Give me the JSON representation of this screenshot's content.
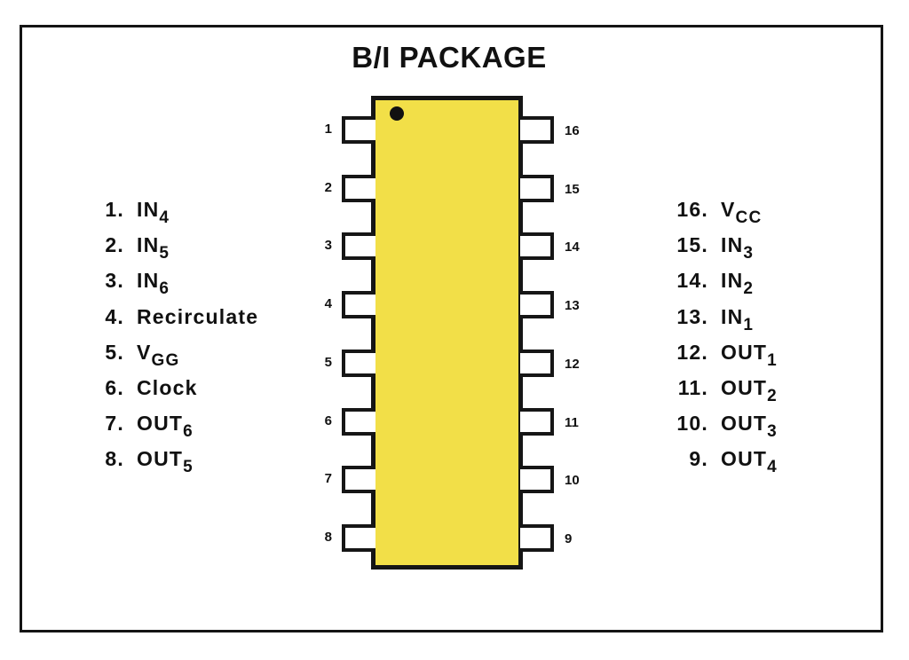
{
  "title": "B/I PACKAGE",
  "pin_numbers_left": [
    "1",
    "2",
    "3",
    "4",
    "5",
    "6",
    "7",
    "8"
  ],
  "pin_numbers_right": [
    "16",
    "15",
    "14",
    "13",
    "12",
    "11",
    "10",
    "9"
  ],
  "legend_left": [
    {
      "num": "1.",
      "name": "IN",
      "sub": "4"
    },
    {
      "num": "2.",
      "name": "IN",
      "sub": "5"
    },
    {
      "num": "3.",
      "name": "IN",
      "sub": "6"
    },
    {
      "num": "4.",
      "name": "Recirculate",
      "sub": ""
    },
    {
      "num": "5.",
      "name": "V",
      "sub": "GG"
    },
    {
      "num": "6.",
      "name": "Clock",
      "sub": ""
    },
    {
      "num": "7.",
      "name": "OUT",
      "sub": "6"
    },
    {
      "num": "8.",
      "name": "OUT",
      "sub": "5"
    }
  ],
  "legend_right": [
    {
      "num": "16.",
      "name": "V",
      "sub": "CC"
    },
    {
      "num": "15.",
      "name": "IN",
      "sub": "3"
    },
    {
      "num": "14.",
      "name": "IN",
      "sub": "2"
    },
    {
      "num": "13.",
      "name": "IN",
      "sub": "1"
    },
    {
      "num": "12.",
      "name": "OUT",
      "sub": "1"
    },
    {
      "num": "11.",
      "name": "OUT",
      "sub": "2"
    },
    {
      "num": "10.",
      "name": "OUT",
      "sub": "3"
    },
    {
      "num": "9.",
      "name": "OUT",
      "sub": "4"
    }
  ],
  "colors": {
    "chip_body": "#f2df48",
    "outline": "#151515",
    "background": "#ffffff"
  }
}
